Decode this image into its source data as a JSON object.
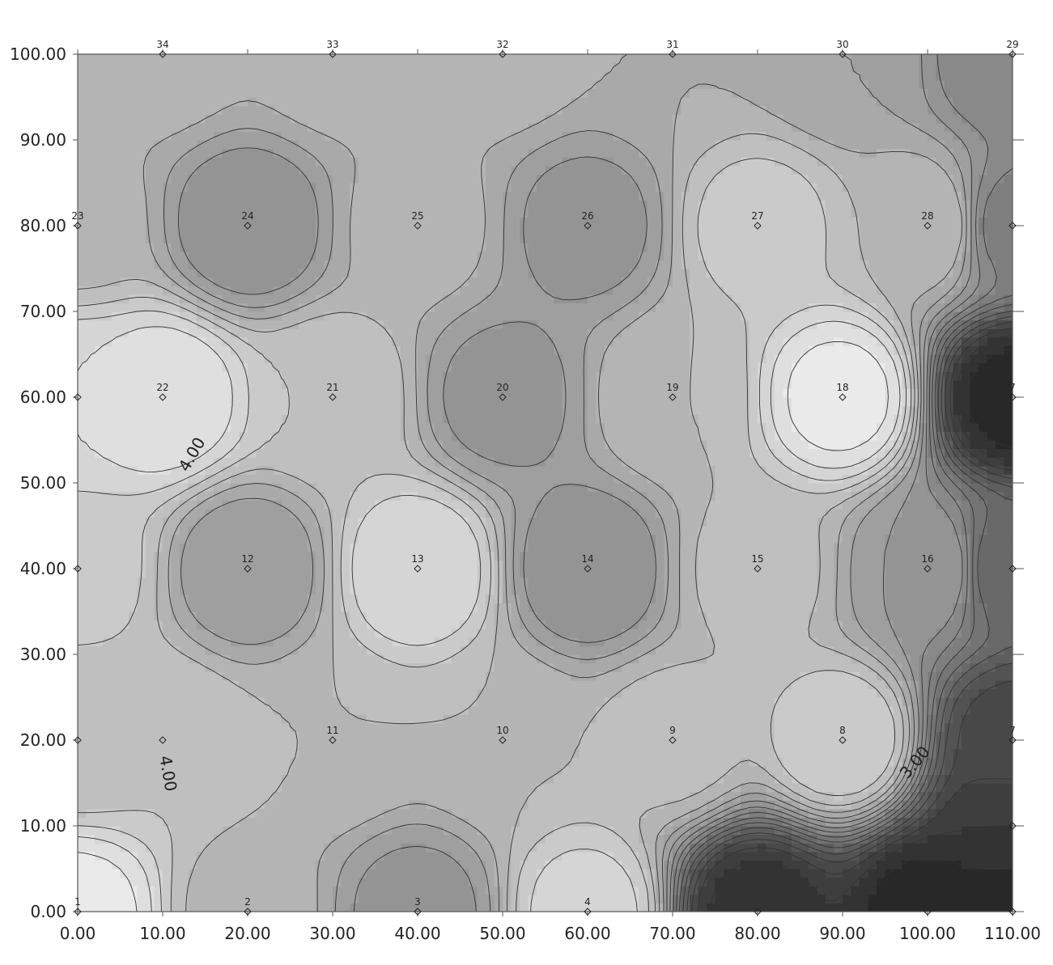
{
  "chart_data": {
    "type": "contour",
    "title": "",
    "xlabel": "",
    "ylabel": "",
    "xlim": [
      0,
      110
    ],
    "ylim": [
      0,
      100
    ],
    "x_ticks": [
      "0.00",
      "10.00",
      "20.00",
      "30.00",
      "40.00",
      "50.00",
      "60.00",
      "70.00",
      "80.00",
      "90.00",
      "100.00",
      "110.00"
    ],
    "y_ticks": [
      "0.00",
      "10.00",
      "20.00",
      "30.00",
      "40.00",
      "50.00",
      "60.00",
      "70.00",
      "80.00",
      "90.00",
      "100.00"
    ],
    "grid": false,
    "colormap": {
      "low": "#1f1f1f",
      "high": "#f5f5f5"
    },
    "contour_labels": [
      {
        "text": "4.00",
        "x": 14,
        "y": 53
      },
      {
        "text": "4.00",
        "x": 10,
        "y": 16
      },
      {
        "text": "3.00",
        "x": 99,
        "y": 17
      }
    ],
    "points": [
      {
        "id": "1",
        "x": 0,
        "y": 0,
        "z": 4.9
      },
      {
        "id": "2",
        "x": 20,
        "y": 0,
        "z": 3.9
      },
      {
        "id": "3",
        "x": 40,
        "y": 0,
        "z": 3.3
      },
      {
        "id": "4",
        "x": 60,
        "y": 0,
        "z": 4.5
      },
      {
        "id": "",
        "x": 80,
        "y": 0,
        "z": 1.5
      },
      {
        "id": "",
        "x": 100,
        "y": 0,
        "z": 1.3
      },
      {
        "id": "",
        "x": 110,
        "y": 0,
        "z": 1.2
      },
      {
        "id": "",
        "x": 110,
        "y": 10,
        "z": 1.6
      },
      {
        "id": "7",
        "x": 110,
        "y": 20,
        "z": 1.9
      },
      {
        "id": "8",
        "x": 90,
        "y": 20,
        "z": 4.4
      },
      {
        "id": "9",
        "x": 70,
        "y": 20,
        "z": 4.1
      },
      {
        "id": "10",
        "x": 50,
        "y": 20,
        "z": 4.0
      },
      {
        "id": "11",
        "x": 30,
        "y": 20,
        "z": 4.0
      },
      {
        "id": "12",
        "x": 20,
        "y": 40,
        "z": 3.4
      },
      {
        "id": "13",
        "x": 40,
        "y": 40,
        "z": 4.6
      },
      {
        "id": "14",
        "x": 60,
        "y": 40,
        "z": 3.2
      },
      {
        "id": "15",
        "x": 80,
        "y": 40,
        "z": 4.1
      },
      {
        "id": "16",
        "x": 100,
        "y": 40,
        "z": 3.4
      },
      {
        "id": "",
        "x": 110,
        "y": 40,
        "z": 2.4
      },
      {
        "id": "7",
        "x": 110,
        "y": 60,
        "z": 1.3
      },
      {
        "id": "18",
        "x": 90,
        "y": 60,
        "z": 4.9
      },
      {
        "id": "19",
        "x": 70,
        "y": 60,
        "z": 4.0
      },
      {
        "id": "20",
        "x": 50,
        "y": 60,
        "z": 3.3
      },
      {
        "id": "21",
        "x": 30,
        "y": 60,
        "z": 4.2
      },
      {
        "id": "22",
        "x": 10,
        "y": 60,
        "z": 4.8
      },
      {
        "id": "",
        "x": 0,
        "y": 60,
        "z": 4.6
      },
      {
        "id": "",
        "x": 0,
        "y": 40,
        "z": 4.3
      },
      {
        "id": "",
        "x": 0,
        "y": 20,
        "z": 4.0
      },
      {
        "id": "",
        "x": 10,
        "y": 20,
        "z": 4.2
      },
      {
        "id": "23",
        "x": 0,
        "y": 80,
        "z": 3.9
      },
      {
        "id": "24",
        "x": 20,
        "y": 80,
        "z": 3.2
      },
      {
        "id": "25",
        "x": 40,
        "y": 80,
        "z": 3.9
      },
      {
        "id": "26",
        "x": 60,
        "y": 80,
        "z": 3.3
      },
      {
        "id": "27",
        "x": 80,
        "y": 80,
        "z": 4.3
      },
      {
        "id": "28",
        "x": 100,
        "y": 80,
        "z": 4.0
      },
      {
        "id": "",
        "x": 110,
        "y": 80,
        "z": 2.9
      },
      {
        "id": "29",
        "x": 110,
        "y": 100,
        "z": 3.0
      },
      {
        "id": "30",
        "x": 90,
        "y": 100,
        "z": 3.6
      },
      {
        "id": "31",
        "x": 70,
        "y": 100,
        "z": 3.8
      },
      {
        "id": "32",
        "x": 50,
        "y": 100,
        "z": 3.9
      },
      {
        "id": "33",
        "x": 30,
        "y": 100,
        "z": 3.9
      },
      {
        "id": "34",
        "x": 10,
        "y": 100,
        "z": 3.9
      }
    ]
  }
}
